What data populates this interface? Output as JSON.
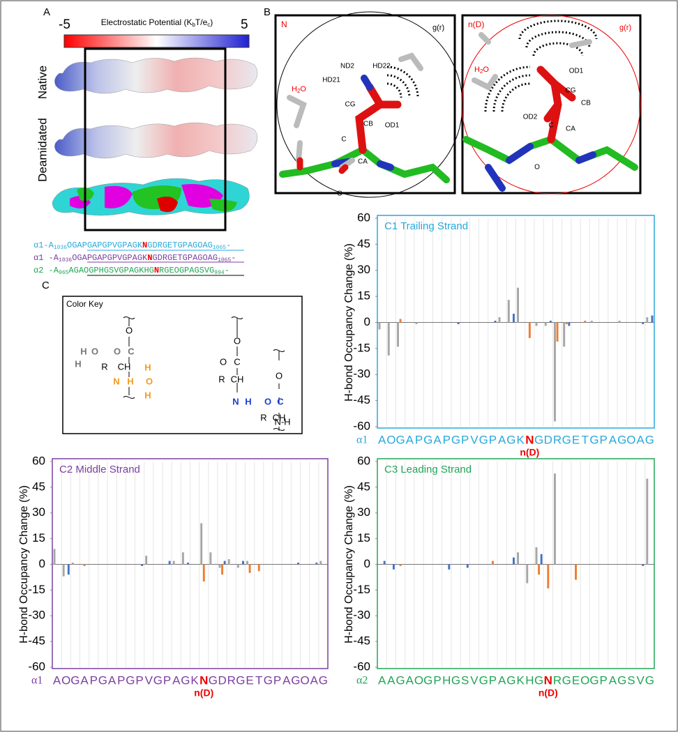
{
  "panel_labels": [
    "A",
    "B",
    "C"
  ],
  "colorbar": {
    "min_label": "-5",
    "max_label": "5",
    "title": [
      "Electrostatic Potential (K",
      "b",
      "T/e",
      "c",
      ")"
    ]
  },
  "surface_labels": [
    "Native",
    "Deamidated"
  ],
  "sequences": [
    {
      "pre": "α1-A",
      "start": "1036",
      "a": "OGAPGAPGPVGPAGK",
      "n": "N",
      "b": "GDRGETGPAGOAG",
      "end": "1065",
      "post": "-"
    },
    {
      "pre": "α1 -A",
      "start": "1036",
      "a": "OGAPGAPGPVGPAGK",
      "n": "N",
      "b": "GDRGETGPAGOAG",
      "end": "1065",
      "post": "-"
    },
    {
      "pre": "α2 -A",
      "start": "965",
      "a": "AGAOGPHGSVGPAGKHG",
      "n": "N",
      "b": "RGEOGPAGSVG",
      "end": "994",
      "post": "-"
    }
  ],
  "md_panels": [
    {
      "label": "N",
      "gr": "g(r)",
      "water": [
        "H",
        "2",
        "O"
      ],
      "atoms": [
        "ND2",
        "HD22",
        "HD21",
        "CG",
        "CB",
        "OD1",
        "C",
        "CA",
        "O"
      ]
    },
    {
      "label": "n(D)",
      "gr": "g(r)",
      "water": [
        "H",
        "2",
        "O"
      ],
      "atoms": [
        "OD1",
        "CG",
        "CB",
        "OD2",
        "C",
        "CA",
        "O"
      ]
    }
  ],
  "color_key": {
    "title": "Color Key",
    "labels": [
      "O",
      "O",
      "C",
      "H",
      "O",
      "H",
      "R",
      "CH",
      "N",
      "H",
      "O",
      "H",
      "H",
      "O",
      "O",
      "C",
      "R",
      "CH",
      "N",
      "H",
      "O",
      "C",
      "O",
      "R",
      "CH",
      "N-H"
    ]
  },
  "chart_data": [
    {
      "type": "bar",
      "title": "C1 Trailing Strand",
      "color": "#29a9dc",
      "y_label": "H-bond Occupancy Change (%)",
      "sequence_label": "α1",
      "marker_label": "n(D)",
      "categories": [
        "A",
        "O",
        "G",
        "A",
        "P",
        "G",
        "A",
        "P",
        "G",
        "P",
        "V",
        "G",
        "P",
        "A",
        "G",
        "K",
        "N",
        "G",
        "D",
        "R",
        "G",
        "E",
        "T",
        "G",
        "P",
        "A",
        "G",
        "O",
        "A",
        "G"
      ],
      "series": [
        {
          "color": "#a6a6a6",
          "values": [
            -4,
            -19,
            -14,
            0,
            -1,
            0,
            0,
            0,
            0,
            0,
            0,
            0,
            0,
            3,
            13,
            20,
            0,
            -2,
            -2,
            -57,
            -14,
            0,
            0,
            1,
            0,
            0,
            1,
            0,
            0,
            3
          ]
        },
        {
          "color": "#ed7d31",
          "values": [
            0,
            0,
            2,
            0,
            0,
            0,
            0,
            0,
            0,
            0,
            0,
            0,
            0,
            0,
            0,
            0,
            -9,
            0,
            0,
            -11,
            -1,
            0,
            1,
            0,
            0,
            0,
            0,
            0,
            0,
            0
          ]
        },
        {
          "color": "#4472c4",
          "values": [
            0,
            0,
            0,
            0,
            0,
            0,
            0,
            0,
            -1,
            0,
            0,
            0,
            1,
            0,
            5,
            0,
            0,
            0,
            1,
            0,
            -2,
            0,
            0,
            0,
            0,
            0,
            0,
            0,
            -1,
            4
          ]
        }
      ],
      "ylim": [
        -60,
        60
      ],
      "yticks": [
        -60,
        -45,
        -30,
        -15,
        0,
        15,
        30,
        45,
        60
      ]
    },
    {
      "type": "bar",
      "title": "C2 Middle Strand",
      "color": "#7b3fa0",
      "y_label": "H-bond Occupancy Change (%)",
      "sequence_label": "α1",
      "marker_label": "n(D)",
      "categories": [
        "A",
        "O",
        "G",
        "A",
        "P",
        "G",
        "A",
        "P",
        "G",
        "P",
        "V",
        "G",
        "P",
        "A",
        "G",
        "K",
        "N",
        "G",
        "D",
        "R",
        "G",
        "E",
        "T",
        "G",
        "P",
        "A",
        "G",
        "O",
        "A",
        "G"
      ],
      "series": [
        {
          "color": "#a6a6a6",
          "values": [
            9,
            -7,
            1,
            0,
            0,
            0,
            0,
            0,
            0,
            0,
            5,
            0,
            0,
            2,
            7,
            0,
            24,
            7,
            -2,
            3,
            -2,
            2,
            0,
            0,
            0,
            0,
            0,
            0,
            0,
            2
          ]
        },
        {
          "color": "#ed7d31",
          "values": [
            0,
            0,
            0,
            -1,
            0,
            0,
            0,
            0,
            0,
            0,
            0,
            0,
            0,
            0,
            0,
            0,
            -10,
            0,
            -6,
            0,
            0,
            -5,
            -4,
            0,
            0,
            0,
            0,
            0,
            0,
            0
          ]
        },
        {
          "color": "#4472c4",
          "values": [
            0,
            -6,
            0,
            0,
            0,
            0,
            0,
            0,
            0,
            -1,
            0,
            0,
            2,
            0,
            1,
            0,
            0,
            0,
            2,
            0,
            2,
            0,
            0,
            0,
            0,
            0,
            1,
            0,
            1,
            0
          ]
        }
      ],
      "ylim": [
        -60,
        60
      ],
      "yticks": [
        -60,
        -45,
        -30,
        -15,
        0,
        15,
        30,
        45,
        60
      ]
    },
    {
      "type": "bar",
      "title": "C3 Leading Strand",
      "color": "#21a556",
      "y_label": "H-bond Occupancy Change (%)",
      "sequence_label": "α2",
      "marker_label": "n(D)",
      "categories": [
        "A",
        "A",
        "G",
        "A",
        "O",
        "G",
        "P",
        "H",
        "G",
        "S",
        "V",
        "G",
        "P",
        "A",
        "G",
        "K",
        "H",
        "G",
        "N",
        "R",
        "G",
        "E",
        "O",
        "G",
        "P",
        "A",
        "G",
        "S",
        "V",
        "G"
      ],
      "series": [
        {
          "color": "#a6a6a6",
          "values": [
            0,
            0,
            0,
            0,
            0,
            0,
            0,
            0,
            0,
            0,
            0,
            0,
            0,
            0,
            0,
            7,
            -11,
            10,
            0,
            53,
            0,
            0,
            0,
            0,
            0,
            0,
            0,
            0,
            0,
            50
          ]
        },
        {
          "color": "#ed7d31",
          "values": [
            0,
            0,
            -1,
            0,
            0,
            0,
            0,
            0,
            0,
            0,
            0,
            0,
            2,
            0,
            0,
            0,
            0,
            -6,
            -14,
            0,
            0,
            -9,
            0,
            0,
            0,
            0,
            0,
            0,
            0,
            0
          ]
        },
        {
          "color": "#4472c4",
          "values": [
            2,
            -3,
            0,
            0,
            0,
            0,
            0,
            -3,
            0,
            -2,
            0,
            0,
            0,
            0,
            4,
            0,
            0,
            6,
            0,
            0,
            0,
            0,
            0,
            0,
            0,
            0,
            0,
            0,
            -1,
            0
          ]
        }
      ],
      "ylim": [
        -60,
        60
      ],
      "yticks": [
        -60,
        -45,
        -30,
        -15,
        0,
        15,
        30,
        45,
        60
      ]
    }
  ]
}
